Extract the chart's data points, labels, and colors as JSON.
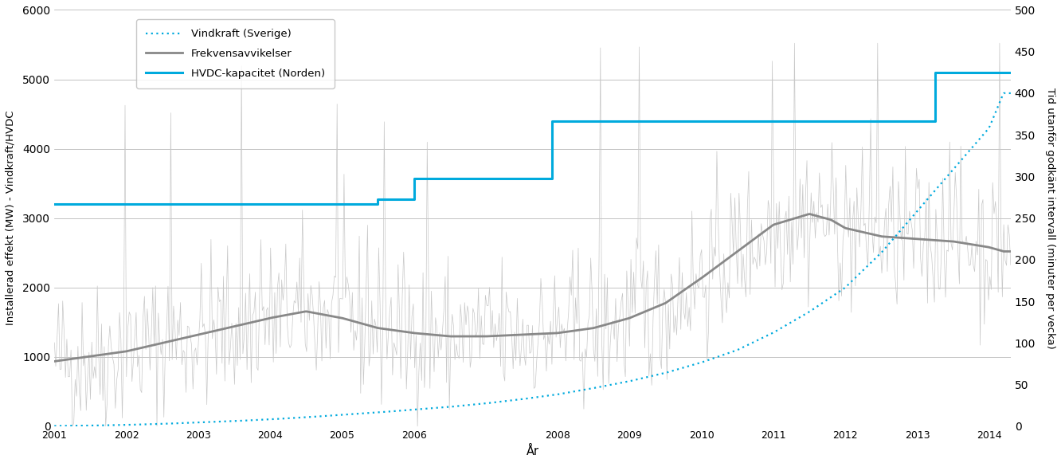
{
  "ylabel_left": "Installerad effekt (MW) - Vindkraft/HVDC",
  "ylabel_right": "Tid utanför godkänt intervall (minuter per vecka)",
  "xlabel": "År",
  "ylim_left": [
    0,
    6000
  ],
  "ylim_right": [
    0,
    500
  ],
  "yticks_left": [
    0,
    1000,
    2000,
    3000,
    4000,
    5000,
    6000
  ],
  "yticks_right": [
    0,
    50,
    100,
    150,
    200,
    250,
    300,
    350,
    400,
    450,
    500
  ],
  "xlim": [
    2001.0,
    2014.3
  ],
  "xtick_labels": [
    "2001",
    "2002",
    "2003",
    "2004",
    "2005",
    "2006",
    "",
    "2008",
    "2009",
    "2010",
    "2011",
    "2012",
    "2013",
    "2014"
  ],
  "xtick_positions": [
    2001,
    2002,
    2003,
    2004,
    2005,
    2006,
    2007,
    2008,
    2009,
    2010,
    2011,
    2012,
    2013,
    2014
  ],
  "hvdc_steps": [
    [
      2001.0,
      3200
    ],
    [
      2005.5,
      3200
    ],
    [
      2005.5,
      3275
    ],
    [
      2006.0,
      3275
    ],
    [
      2006.0,
      3575
    ],
    [
      2007.92,
      3575
    ],
    [
      2007.92,
      4400
    ],
    [
      2013.25,
      4400
    ],
    [
      2013.25,
      5100
    ],
    [
      2014.3,
      5100
    ]
  ],
  "hvdc_color": "#00AADD",
  "hvdc_linewidth": 2.2,
  "vindkraft_color": "#00AADD",
  "freq_raw_color": "#C8C8C8",
  "freq_smooth_color": "#888888",
  "freq_smooth_linewidth": 2.0,
  "legend_labels": [
    "Vindkraft (Sverige)",
    "Frekvensavvikelser",
    "HVDC-kapacitet (Norden)"
  ],
  "background_color": "#FFFFFF",
  "grid_color": "#AAAAAA",
  "grid_linewidth": 0.5,
  "seed": 42,
  "scale": 12.0,
  "freq_smooth_knots": [
    [
      2001.0,
      78
    ],
    [
      2002.0,
      90
    ],
    [
      2003.0,
      110
    ],
    [
      2004.0,
      130
    ],
    [
      2004.5,
      138
    ],
    [
      2005.0,
      130
    ],
    [
      2005.5,
      118
    ],
    [
      2006.0,
      112
    ],
    [
      2006.5,
      108
    ],
    [
      2007.0,
      108
    ],
    [
      2007.5,
      110
    ],
    [
      2008.0,
      112
    ],
    [
      2008.5,
      118
    ],
    [
      2009.0,
      130
    ],
    [
      2009.5,
      148
    ],
    [
      2010.0,
      178
    ],
    [
      2010.5,
      210
    ],
    [
      2011.0,
      242
    ],
    [
      2011.5,
      255
    ],
    [
      2011.8,
      248
    ],
    [
      2012.0,
      238
    ],
    [
      2012.5,
      228
    ],
    [
      2013.0,
      225
    ],
    [
      2013.5,
      222
    ],
    [
      2014.0,
      215
    ],
    [
      2014.2,
      210
    ]
  ],
  "vind_knots": [
    [
      2001.0,
      5
    ],
    [
      2001.5,
      10
    ],
    [
      2002.0,
      20
    ],
    [
      2002.5,
      35
    ],
    [
      2003.0,
      55
    ],
    [
      2003.5,
      75
    ],
    [
      2004.0,
      100
    ],
    [
      2004.5,
      130
    ],
    [
      2005.0,
      165
    ],
    [
      2005.5,
      200
    ],
    [
      2006.0,
      240
    ],
    [
      2006.5,
      280
    ],
    [
      2007.0,
      330
    ],
    [
      2007.5,
      390
    ],
    [
      2008.0,
      460
    ],
    [
      2008.5,
      550
    ],
    [
      2009.0,
      650
    ],
    [
      2009.5,
      770
    ],
    [
      2010.0,
      920
    ],
    [
      2010.5,
      1100
    ],
    [
      2011.0,
      1350
    ],
    [
      2011.5,
      1650
    ],
    [
      2012.0,
      2000
    ],
    [
      2012.5,
      2500
    ],
    [
      2013.0,
      3100
    ],
    [
      2013.5,
      3700
    ],
    [
      2014.0,
      4300
    ],
    [
      2014.2,
      4800
    ]
  ]
}
